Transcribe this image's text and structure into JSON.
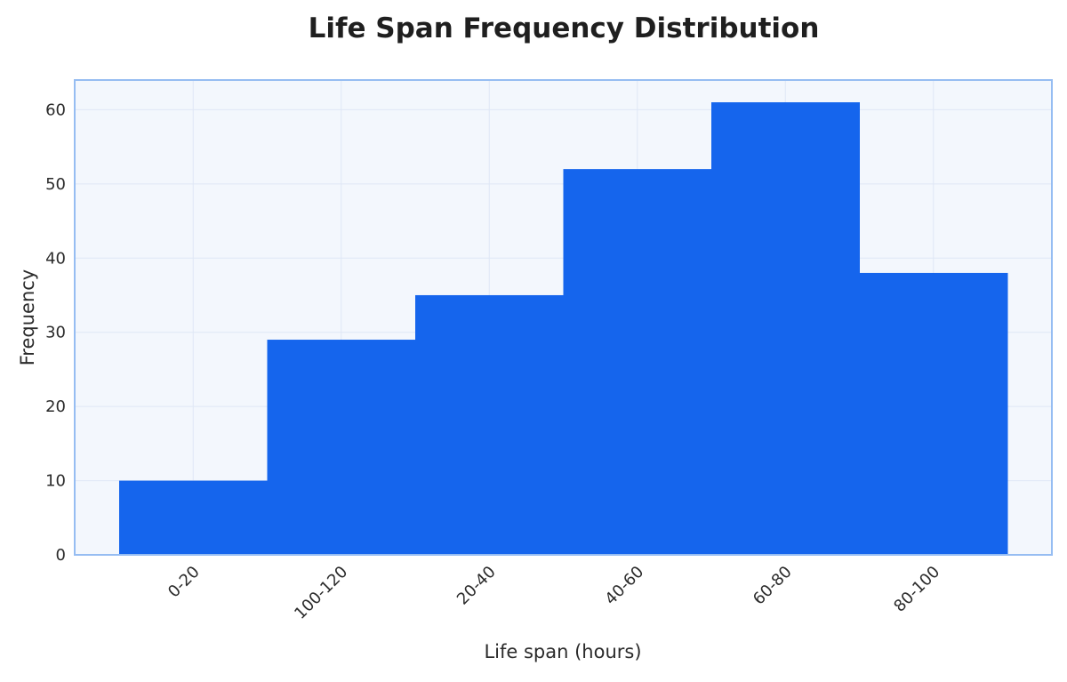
{
  "chart_data": {
    "type": "bar",
    "title": "Life Span Frequency Distribution",
    "xlabel": "Life span (hours)",
    "ylabel": "Frequency",
    "categories": [
      "0-20",
      "100-120",
      "20-40",
      "40-60",
      "60-80",
      "80-100"
    ],
    "values": [
      10,
      29,
      35,
      52,
      61,
      38
    ],
    "ylim": [
      0,
      64
    ],
    "yticks": [
      0,
      10,
      20,
      30,
      40,
      50,
      60
    ],
    "grid": true,
    "legend": "none"
  },
  "colors": {
    "bar": "#1565ed",
    "plot_background": "#f3f7fd",
    "plot_border": "#96bdf2",
    "grid": "#dfe7f6"
  }
}
